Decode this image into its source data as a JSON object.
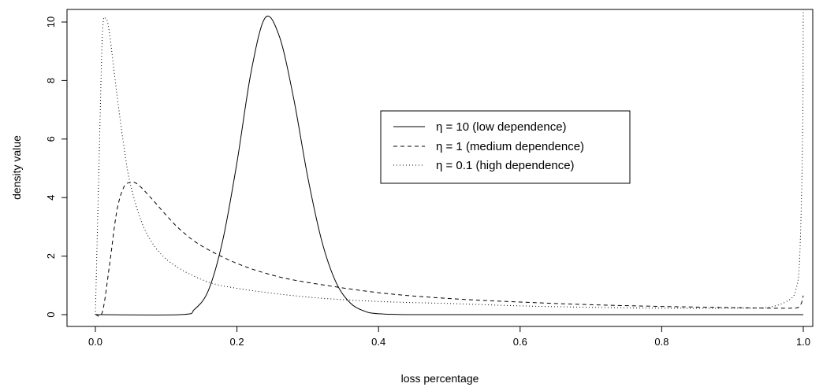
{
  "chart_data": {
    "type": "line",
    "xlabel": "loss percentage",
    "ylabel": "density value",
    "xlim": [
      0,
      1
    ],
    "ylim": [
      0,
      10
    ],
    "xticks": [
      0.0,
      0.2,
      0.4,
      0.6,
      0.8,
      1.0
    ],
    "xtick_labels": [
      "0.0",
      "0.2",
      "0.4",
      "0.6",
      "0.8",
      "1.0"
    ],
    "yticks": [
      0,
      2,
      4,
      6,
      8,
      10
    ],
    "ytick_labels": [
      "0",
      "2",
      "4",
      "6",
      "8",
      "10"
    ],
    "grid": false,
    "legend_position": "center-right",
    "series": [
      {
        "name": "η = 10 (low dependence)",
        "style": "solid",
        "color": "#000000",
        "x": [
          0.0,
          0.12,
          0.14,
          0.16,
          0.18,
          0.2,
          0.22,
          0.24,
          0.26,
          0.28,
          0.3,
          0.32,
          0.34,
          0.36,
          0.38,
          0.4,
          0.45,
          0.6,
          1.0
        ],
        "y": [
          0.0,
          0.0,
          0.18,
          0.85,
          2.55,
          5.2,
          8.3,
          10.15,
          9.5,
          7.4,
          4.7,
          2.5,
          1.1,
          0.4,
          0.12,
          0.03,
          0.0,
          0.0,
          0.0
        ]
      },
      {
        "name": "η = 1 (medium dependence)",
        "style": "dashed",
        "color": "#000000",
        "x": [
          0.0,
          0.01,
          0.02,
          0.03,
          0.04,
          0.05,
          0.06,
          0.08,
          0.1,
          0.12,
          0.15,
          0.2,
          0.25,
          0.3,
          0.4,
          0.5,
          0.6,
          0.7,
          0.8,
          0.9,
          0.98,
          0.995,
          1.0
        ],
        "y": [
          0.0,
          0.1,
          1.7,
          3.5,
          4.35,
          4.52,
          4.45,
          3.95,
          3.4,
          2.9,
          2.35,
          1.75,
          1.35,
          1.1,
          0.75,
          0.55,
          0.43,
          0.34,
          0.28,
          0.24,
          0.22,
          0.3,
          0.65
        ]
      },
      {
        "name": "η = 0.1 (high dependence)",
        "style": "dotted",
        "color": "#000000",
        "x": [
          0.0,
          0.005,
          0.01,
          0.015,
          0.02,
          0.03,
          0.04,
          0.05,
          0.07,
          0.1,
          0.15,
          0.2,
          0.3,
          0.4,
          0.5,
          0.6,
          0.7,
          0.8,
          0.9,
          0.95,
          0.98,
          0.99,
          0.995,
          0.999,
          1.0
        ],
        "y": [
          0.0,
          5.0,
          9.6,
          10.1,
          9.6,
          7.6,
          5.8,
          4.4,
          2.9,
          1.9,
          1.2,
          0.9,
          0.6,
          0.45,
          0.38,
          0.3,
          0.25,
          0.22,
          0.22,
          0.25,
          0.5,
          0.9,
          2.0,
          6.0,
          10.5
        ]
      }
    ]
  }
}
